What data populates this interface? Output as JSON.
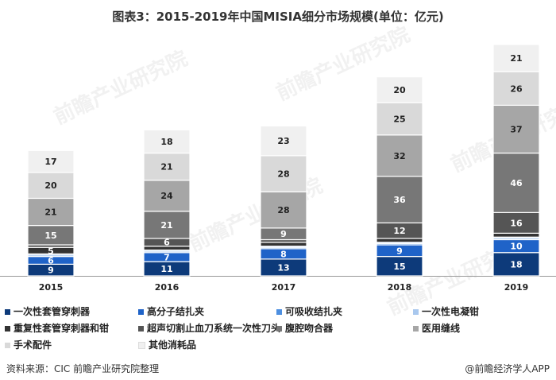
{
  "title": "图表3：2015-2019年中国MISIA细分市场规模(单位：亿元)",
  "source": "资料来源：CIC  前瞻产业研究院整理",
  "brand": "@前瞻经济学人APP",
  "watermark": "前瞻产业研究院",
  "colors": {
    "一次性套管穿刺器": "#0d3a7a",
    "高分子结扎夹": "#1f63c8",
    "可吸收结扎夹": "#4d8fe0",
    "一次性电凝钳": "#a9c8ee",
    "重复性套管穿刺器和钳": "#333333",
    "超声切割止血刀系统一次性刀头": "#555555",
    "腹腔吻合器": "#777777",
    "医用缝线": "#a6a6a6",
    "手术配件": "#d9d9d9",
    "其他消耗品": "#f0f0f0"
  },
  "chart_data": {
    "type": "bar",
    "stacked": true,
    "categories": [
      "2015",
      "2016",
      "2017",
      "2018",
      "2019"
    ],
    "series": [
      {
        "name": "一次性套管穿刺器",
        "values": [
          9,
          11,
          13,
          15,
          18
        ]
      },
      {
        "name": "高分子结扎夹",
        "values": [
          6,
          7,
          8,
          9,
          10
        ]
      },
      {
        "name": "可吸收结扎夹",
        "values": [
          1,
          1,
          1,
          1,
          1
        ]
      },
      {
        "name": "一次性电凝钳",
        "values": [
          1,
          1,
          1,
          1,
          1
        ]
      },
      {
        "name": "重复性套管穿刺器和钳",
        "values": [
          5,
          3,
          3,
          3,
          3
        ]
      },
      {
        "name": "超声切割止血刀系统一次性刀头",
        "values": [
          2,
          6,
          2,
          12,
          16
        ]
      },
      {
        "name": "腹腔吻合器",
        "values": [
          15,
          21,
          9,
          36,
          46
        ]
      },
      {
        "name": "医用缝线",
        "values": [
          21,
          24,
          28,
          32,
          37
        ]
      },
      {
        "name": "手术配件",
        "values": [
          20,
          21,
          28,
          25,
          26
        ]
      },
      {
        "name": "其他消耗品",
        "values": [
          17,
          18,
          23,
          20,
          21
        ]
      }
    ],
    "labels": [
      [
        "9",
        "11",
        "13",
        "15",
        "18"
      ],
      [
        "6",
        "7",
        "8",
        "9",
        "10"
      ],
      [
        "",
        "",
        "",
        "",
        ""
      ],
      [
        "",
        "",
        "",
        "",
        ""
      ],
      [
        "5",
        "",
        "",
        "",
        ""
      ],
      [
        "",
        "6",
        "",
        "12",
        "16"
      ],
      [
        "15",
        "21",
        "9",
        "36",
        "46"
      ],
      [
        "21",
        "24",
        "28",
        "32",
        "37"
      ],
      [
        "20",
        "21",
        "28",
        "25",
        "26"
      ],
      [
        "17",
        "18",
        "23",
        "20",
        "21"
      ]
    ],
    "legend": [
      [
        "一次性套管穿刺器",
        "高分子结扎夹",
        "可吸收结扎夹",
        "一次性电凝钳"
      ],
      [
        "重复性套管穿刺器和钳",
        "超声切割止血刀系统一次性刀头",
        "腹腔吻合器",
        "医用缝线"
      ],
      [
        "手术配件",
        "其他消耗品"
      ]
    ],
    "legend_position": "bottom",
    "grid": false
  }
}
